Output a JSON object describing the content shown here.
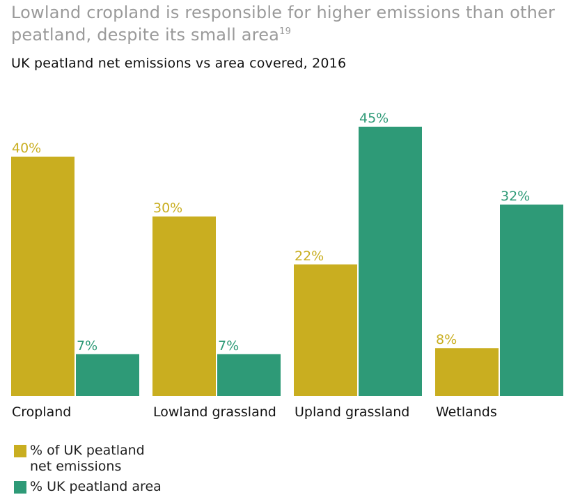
{
  "headline": {
    "text": "Lowland cropland is responsible for higher emissions than other peatland, despite its small area",
    "footnote": "19"
  },
  "chart_data": {
    "type": "bar",
    "title": "UK peatland net emissions vs area covered, 2016",
    "categories": [
      "Cropland",
      "Lowland grassland",
      "Upland grassland",
      "Wetlands"
    ],
    "series": [
      {
        "name": "% of UK peatland net emissions",
        "values": [
          40,
          30,
          22,
          8
        ],
        "labels": [
          "40%",
          "30%",
          "22%",
          "8%"
        ],
        "color": "#c9ae20"
      },
      {
        "name": "% UK peatland area",
        "values": [
          7,
          7,
          45,
          32
        ],
        "labels": [
          "7%",
          "7%",
          "45%",
          "32%"
        ],
        "color": "#2e9a77"
      }
    ],
    "xlabel": "",
    "ylabel": "",
    "ylim": [
      0,
      45
    ],
    "grid": false,
    "legend": "bottom-left"
  },
  "legend": {
    "items": [
      {
        "line1": "% of UK peatland",
        "line2": "net emissions",
        "color": "#c9ae20"
      },
      {
        "line1": "% UK peatland area",
        "line2": "",
        "color": "#2e9a77"
      }
    ]
  }
}
